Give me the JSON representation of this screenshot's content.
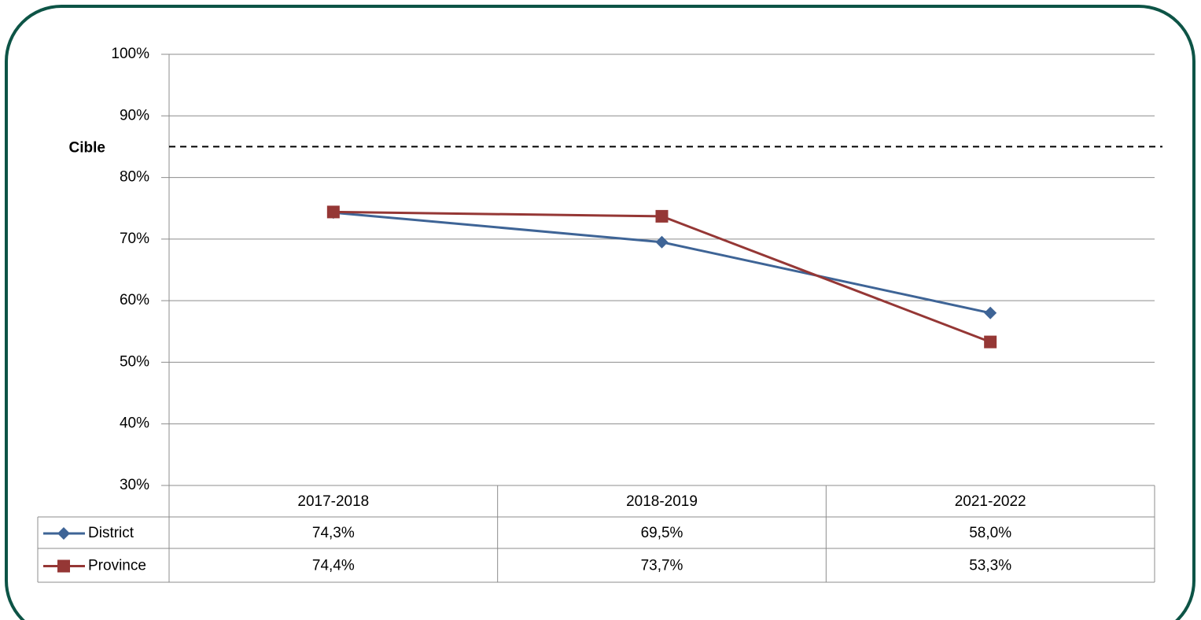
{
  "chart_data": {
    "type": "line",
    "categories": [
      "2017-2018",
      "2018-2019",
      "2021-2022"
    ],
    "series": [
      {
        "name": "District",
        "color": "#3e6496",
        "marker": "diamond",
        "values": [
          74.3,
          69.5,
          58.0
        ],
        "value_labels": [
          "74,3%",
          "69,5%",
          "58,0%"
        ]
      },
      {
        "name": "Province",
        "color": "#953735",
        "marker": "square",
        "values": [
          74.4,
          73.7,
          53.3
        ],
        "value_labels": [
          "74,4%",
          "73,7%",
          "53,3%"
        ]
      }
    ],
    "ylim": [
      30,
      100
    ],
    "yticks": [
      {
        "value": 30,
        "label": "30%"
      },
      {
        "value": 40,
        "label": "40%"
      },
      {
        "value": 50,
        "label": "50%"
      },
      {
        "value": 60,
        "label": "60%"
      },
      {
        "value": 70,
        "label": "70%"
      },
      {
        "value": 80,
        "label": "80%"
      },
      {
        "value": 90,
        "label": "90%"
      },
      {
        "value": 100,
        "label": "100%"
      }
    ],
    "grid": true,
    "target": {
      "value": 85,
      "label": "Cible",
      "color": "#000000"
    }
  }
}
